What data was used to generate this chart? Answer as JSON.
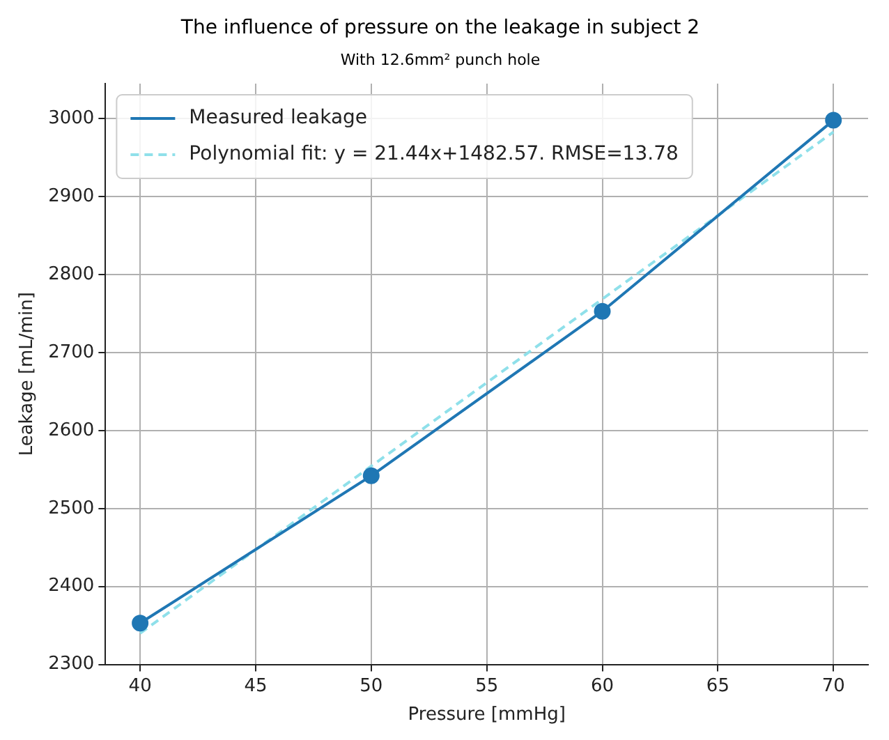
{
  "chart_data": {
    "type": "line",
    "title": "The influence of pressure on the leakage in subject 2",
    "subtitle": "With 12.6mm² punch hole",
    "xlabel": "Pressure [mmHg]",
    "ylabel": "Leakage [mL/min]",
    "x": [
      40,
      50,
      60,
      70
    ],
    "series": [
      {
        "name": "Measured leakage",
        "color": "#1f77b4",
        "values": [
          2353,
          2542,
          2753,
          2998
        ],
        "marker": "circle",
        "line_style": "solid"
      },
      {
        "name": "Polynomial fit: y = 21.44x+1482.57. RMSE=13.78",
        "color": "#8fe0ea",
        "x": [
          40,
          70
        ],
        "values": [
          2340,
          2983
        ],
        "marker": "none",
        "line_style": "dashed"
      }
    ],
    "xlim": [
      38.5,
      71.5
    ],
    "xticks": [
      40,
      45,
      50,
      55,
      60,
      65,
      70
    ],
    "ylim": [
      2300,
      3045
    ],
    "yticks": [
      2300,
      2400,
      2500,
      2600,
      2700,
      2800,
      2900,
      3000
    ],
    "grid": true,
    "legend": "top left"
  }
}
